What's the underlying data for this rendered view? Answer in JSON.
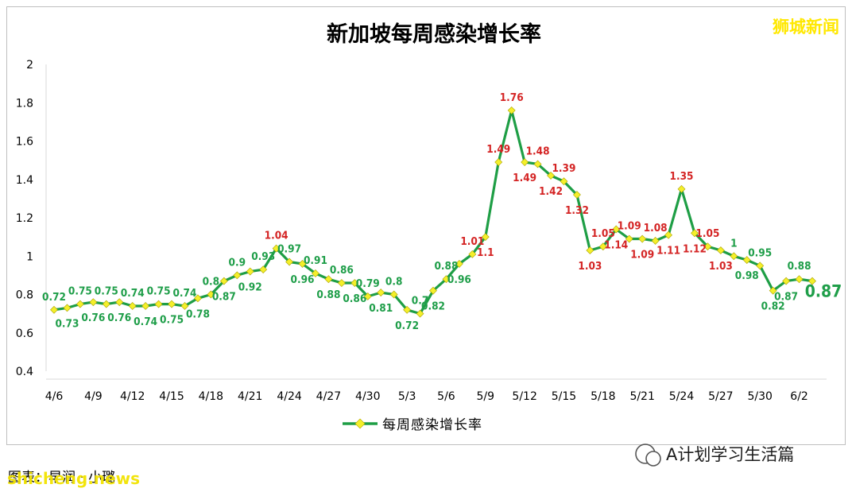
{
  "chart_data": {
    "type": "line",
    "title": "新加坡每周感染增长率",
    "ylim": [
      0.4,
      2
    ],
    "yticks": [
      "0.4",
      "0.6",
      "0.8",
      "1",
      "1.2",
      "1.4",
      "1.6",
      "1.8",
      "2"
    ],
    "xtick_labels": [
      "4/6",
      "4/9",
      "4/12",
      "4/15",
      "4/18",
      "4/21",
      "4/24",
      "4/27",
      "4/30",
      "5/3",
      "5/6",
      "5/9",
      "5/12",
      "5/15",
      "5/18",
      "5/21",
      "5/24",
      "5/27",
      "5/30",
      "6/2"
    ],
    "grid": false,
    "legend_position": "bottom",
    "series": [
      {
        "name": "每周感染增长率",
        "color": "#1e9e45",
        "marker_color": "#f4ef2a",
        "x": [
          "4/6",
          "4/7",
          "4/8",
          "4/9",
          "4/10",
          "4/11",
          "4/12",
          "4/13",
          "4/14",
          "4/15",
          "4/16",
          "4/17",
          "4/18",
          "4/19",
          "4/20",
          "4/21",
          "4/22",
          "4/23",
          "4/24",
          "4/25",
          "4/26",
          "4/27",
          "4/28",
          "4/29",
          "4/30",
          "5/1",
          "5/2",
          "5/3",
          "5/4",
          "5/5",
          "5/6",
          "5/7",
          "5/8",
          "5/9",
          "5/10",
          "5/11",
          "5/12",
          "5/13",
          "5/14",
          "5/15",
          "5/16",
          "5/17",
          "5/18",
          "5/19",
          "5/20",
          "5/21",
          "5/22",
          "5/23",
          "5/24",
          "5/25",
          "5/26",
          "5/27",
          "5/28",
          "5/29",
          "5/30",
          "5/31",
          "6/1",
          "6/2",
          "6/3"
        ],
        "values": [
          0.72,
          0.73,
          0.75,
          0.76,
          0.75,
          0.76,
          0.74,
          0.74,
          0.75,
          0.75,
          0.74,
          0.78,
          0.8,
          0.87,
          0.9,
          0.92,
          0.93,
          1.04,
          0.97,
          0.96,
          0.91,
          0.88,
          0.86,
          0.86,
          0.79,
          0.81,
          0.8,
          0.72,
          0.7,
          0.82,
          0.88,
          0.96,
          1.01,
          1.1,
          1.49,
          1.76,
          1.49,
          1.48,
          1.42,
          1.39,
          1.32,
          1.03,
          1.05,
          1.14,
          1.09,
          1.09,
          1.08,
          1.11,
          1.35,
          1.12,
          1.05,
          1.03,
          1.0,
          0.98,
          0.95,
          0.82,
          0.87,
          0.88,
          0.87
        ],
        "labels": [
          "0.72",
          "0.73",
          "0.75",
          "0.76",
          "0.75",
          "0.76",
          "0.74",
          "0.74",
          "0.75",
          "0.75",
          "0.74",
          "0.78",
          "0.8",
          "0.87",
          "0.9",
          "0.92",
          "0.93",
          "1.04",
          "0.97",
          "0.96",
          "0.91",
          "0.88",
          "0.86",
          "0.86",
          "0.79",
          "0.81",
          "0.8",
          "0.72",
          "0.7",
          "0.82",
          "0.88",
          "0.96",
          "1.01",
          "1.1",
          "1.49",
          "1.76",
          "1.49",
          "1.48",
          "1.42",
          "1.39",
          "1.32",
          "1.03",
          "1.05",
          "1.14",
          "1.09",
          "1.09",
          "1.08",
          "1.11",
          "1.35",
          "1.12",
          "1.05",
          "1.03",
          "1",
          "0.98",
          "0.95",
          "0.82",
          "0.87",
          "0.88",
          "0.87"
        ],
        "label_pos": [
          "above",
          "below",
          "above",
          "below",
          "above",
          "below",
          "above",
          "below",
          "above",
          "below",
          "above",
          "below",
          "above",
          "below",
          "above",
          "below",
          "above",
          "above",
          "above",
          "below",
          "above",
          "below",
          "above",
          "below",
          "above",
          "below",
          "above",
          "below",
          "above",
          "below",
          "above",
          "below",
          "above",
          "below",
          "above",
          "above",
          "below",
          "above",
          "below",
          "above",
          "below",
          "below",
          "above",
          "below",
          "above",
          "below",
          "above",
          "below",
          "above",
          "below",
          "above",
          "below",
          "above",
          "below",
          "above",
          "below",
          "below",
          "above",
          "final"
        ]
      }
    ]
  },
  "brand": "狮城新闻",
  "footer": {
    "source": "图表：早润 · 小璐"
  },
  "watermark": "shicheng.news",
  "wechat": "A计划学习生活篇"
}
